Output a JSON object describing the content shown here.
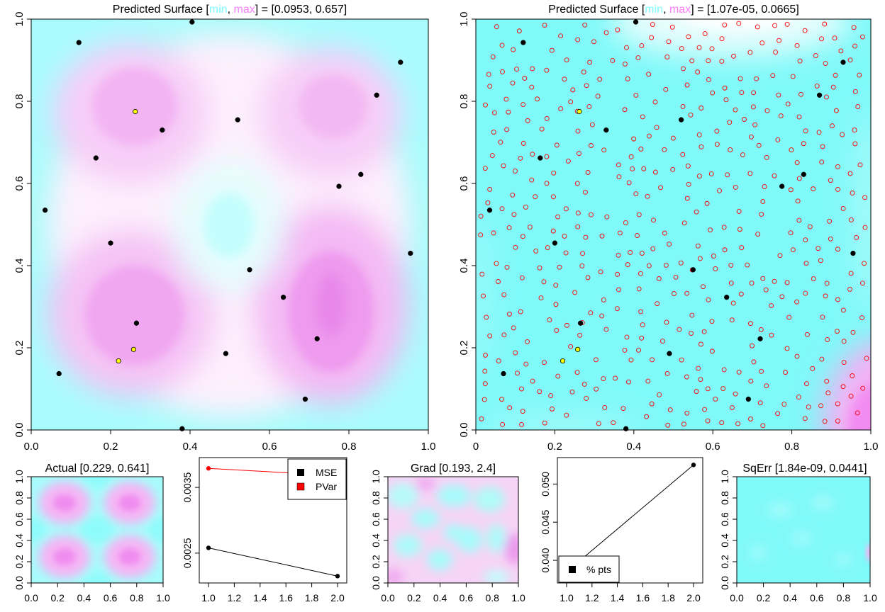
{
  "chart_data": [
    {
      "id": "pred-mean",
      "type": "heatmap",
      "title_parts": [
        "Predicted Surface ",
        "[",
        "min",
        ", ",
        "max",
        "] = [0.0953, 0.657]"
      ],
      "xlim": [
        0,
        1
      ],
      "ylim": [
        0,
        1
      ],
      "xticks": [
        "0.0",
        "0.2",
        "0.4",
        "0.6",
        "0.8",
        "1.0"
      ],
      "yticks": [
        "0.0",
        "0.2",
        "0.4",
        "0.6",
        "0.8",
        "1.0"
      ],
      "colors": {
        "min": "#7ffcfc",
        "max": "#fc7ffc"
      },
      "design_points": [
        [
          0.405,
          0.993
        ],
        [
          0.12,
          0.943
        ],
        [
          0.93,
          0.895
        ],
        [
          0.87,
          0.815
        ],
        [
          0.262,
          0.775
        ],
        [
          0.33,
          0.73
        ],
        [
          0.52,
          0.755
        ],
        [
          0.163,
          0.662
        ],
        [
          0.83,
          0.622
        ],
        [
          0.775,
          0.593
        ],
        [
          0.035,
          0.535
        ],
        [
          0.2,
          0.455
        ],
        [
          0.955,
          0.43
        ],
        [
          0.55,
          0.39
        ],
        [
          0.635,
          0.323
        ],
        [
          0.265,
          0.26
        ],
        [
          0.72,
          0.222
        ],
        [
          0.258,
          0.196
        ],
        [
          0.49,
          0.186
        ],
        [
          0.22,
          0.168
        ],
        [
          0.07,
          0.137
        ],
        [
          0.69,
          0.075
        ],
        [
          0.38,
          0.003
        ]
      ],
      "highlight_points": [
        [
          0.262,
          0.775
        ],
        [
          0.258,
          0.196
        ],
        [
          0.22,
          0.168
        ]
      ]
    },
    {
      "id": "pred-var",
      "type": "heatmap",
      "title_parts": [
        "Predicted Surface ",
        "[",
        "min",
        ", ",
        "max",
        "] = [1.07e-05, 0.0665]"
      ],
      "xlim": [
        0,
        1
      ],
      "ylim": [
        0,
        1
      ],
      "xticks": [
        "0",
        "0.2",
        "0.4",
        "0.6",
        "0.8",
        "1.0"
      ],
      "yticks": [
        "0.0",
        "0.2",
        "0.4",
        "0.6",
        "0.8",
        "1.0"
      ],
      "colors": {
        "min": "#7ffcfc",
        "max": "#fc7ffc"
      }
    },
    {
      "id": "actual",
      "type": "heatmap",
      "title": "Actual [0.229, 0.641]",
      "xticks": [
        "0.0",
        "0.2",
        "0.4",
        "0.6",
        "0.8",
        "1.0"
      ],
      "yticks": [
        "0.0",
        "0.2",
        "0.4",
        "0.6",
        "0.8",
        "1.0"
      ]
    },
    {
      "id": "mse-pvar",
      "type": "line",
      "x": [
        1,
        2
      ],
      "series": [
        {
          "name": "MSE",
          "values": [
            0.00258,
            0.00215
          ],
          "color": "#000000"
        },
        {
          "name": "PVar",
          "values": [
            0.00379,
            0.00368
          ],
          "color": "#ff0000"
        }
      ],
      "xlim": [
        1,
        2
      ],
      "ylim": [
        0.0021,
        0.0039
      ],
      "xticks": [
        "1.0",
        "1.2",
        "1.4",
        "1.6",
        "1.8",
        "2.0"
      ],
      "yticks": [
        "0.0025",
        "0.0035"
      ],
      "legend": "top-right"
    },
    {
      "id": "grad",
      "type": "heatmap",
      "title": "Grad [0.193, 2.4]",
      "xticks": [
        "0.0",
        "0.2",
        "0.4",
        "0.6",
        "0.8",
        "1.0"
      ],
      "yticks": [
        "0.0",
        "0.2",
        "0.4",
        "0.6",
        "0.8",
        "1.0"
      ]
    },
    {
      "id": "pct-pts",
      "type": "line",
      "x": [
        1,
        2
      ],
      "series": [
        {
          "name": "% pts",
          "values": [
            0.0385,
            0.0525
          ],
          "color": "#000000"
        }
      ],
      "xlim": [
        1,
        2
      ],
      "ylim": [
        0.0375,
        0.053
      ],
      "xticks": [
        "1.0",
        "1.2",
        "1.4",
        "1.6",
        "1.8",
        "2.0"
      ],
      "yticks": [
        "0.040",
        "0.045",
        "0.050"
      ],
      "legend": "bottom-left"
    },
    {
      "id": "sqerr",
      "type": "heatmap",
      "title": "SqErr [1.84e-09, 0.0441]",
      "xticks": [
        "0.0",
        "0.2",
        "0.4",
        "0.6",
        "0.8",
        "1.0"
      ],
      "yticks": [
        "0.0",
        "0.2",
        "0.4",
        "0.6",
        "0.8",
        "1.0"
      ]
    }
  ]
}
